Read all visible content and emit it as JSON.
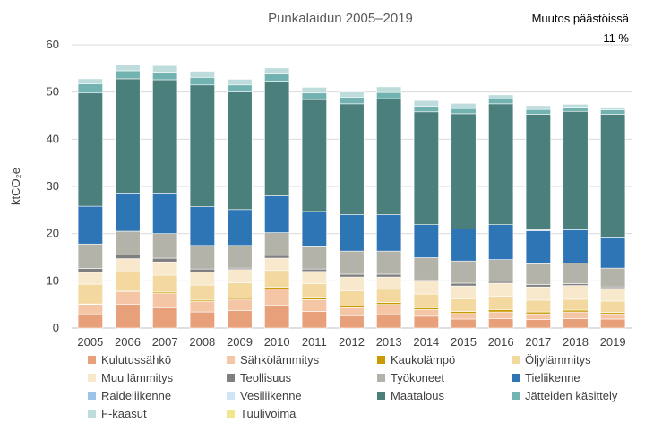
{
  "chart_data": {
    "type": "stacked-bar",
    "title": "Punkalaidun 2005–2019",
    "note_label": "Muutos päästöissä",
    "note_value": "-11 %",
    "ylabel": "ktCO₂e",
    "ylim": [
      0,
      60
    ],
    "yticks": [
      0,
      10,
      20,
      30,
      40,
      50,
      60
    ],
    "ytick_labels": [
      "0",
      "10",
      "20",
      "30",
      "40",
      "50",
      "60"
    ],
    "grid": true,
    "categories": [
      "2005",
      "2006",
      "2007",
      "2008",
      "2009",
      "2010",
      "2011",
      "2012",
      "2013",
      "2014",
      "2015",
      "2016",
      "2017",
      "2018",
      "2019"
    ],
    "series": [
      {
        "name": "Kulutussähkö",
        "color": "#E8A07A",
        "values": [
          3.0,
          5.0,
          4.3,
          3.4,
          3.7,
          4.8,
          3.5,
          2.6,
          3.0,
          2.5,
          1.9,
          2.0,
          1.8,
          2.0,
          1.9
        ]
      },
      {
        "name": "Sähkölämmitys",
        "color": "#F4C6A6",
        "values": [
          2.0,
          2.7,
          3.0,
          2.2,
          2.4,
          3.5,
          2.5,
          1.7,
          2.0,
          1.4,
          1.2,
          1.4,
          1.2,
          1.4,
          1.1
        ]
      },
      {
        "name": "Kaukolämpö",
        "color": "#C89B00",
        "values": [
          0.1,
          0.2,
          0.3,
          0.3,
          0.3,
          0.3,
          0.5,
          0.4,
          0.4,
          0.4,
          0.4,
          0.5,
          0.4,
          0.4,
          0.3
        ]
      },
      {
        "name": "Öljylämmitys",
        "color": "#F3D9A0",
        "values": [
          4.2,
          4.0,
          3.6,
          3.2,
          3.2,
          3.6,
          2.9,
          3.2,
          2.8,
          2.9,
          2.7,
          2.8,
          2.5,
          2.3,
          2.4
        ]
      },
      {
        "name": "Muu lämmitys",
        "color": "#F8E8CC",
        "values": [
          2.5,
          2.8,
          2.8,
          2.8,
          2.8,
          2.6,
          2.6,
          2.9,
          2.6,
          2.8,
          2.7,
          2.8,
          2.8,
          2.9,
          2.7
        ]
      },
      {
        "name": "Teollisuus",
        "color": "#7F7F7F",
        "values": [
          0.8,
          0.8,
          0.8,
          0.6,
          0.3,
          0.6,
          0.5,
          0.6,
          0.6,
          0.2,
          0.6,
          0.4,
          0.5,
          0.4,
          0.3
        ]
      },
      {
        "name": "Työkoneet",
        "color": "#B3B3AA",
        "values": [
          5.2,
          5.0,
          5.2,
          5.0,
          4.8,
          4.8,
          4.7,
          4.9,
          4.9,
          4.7,
          4.7,
          4.6,
          4.4,
          4.4,
          4.0
        ]
      },
      {
        "name": "Tieliikenne",
        "color": "#2E75B6",
        "values": [
          8.0,
          8.1,
          8.6,
          8.2,
          7.6,
          7.8,
          7.5,
          7.7,
          7.7,
          7.0,
          6.8,
          7.4,
          7.0,
          7.0,
          6.4
        ]
      },
      {
        "name": "Raideliikenne",
        "color": "#9DC3E6",
        "values": [
          0.0,
          0.0,
          0.0,
          0.0,
          0.0,
          0.0,
          0.0,
          0.0,
          0.0,
          0.0,
          0.0,
          0.0,
          0.2,
          0.0,
          0.0
        ]
      },
      {
        "name": "Vesiliikenne",
        "color": "#D0E6F5",
        "values": [
          0.0,
          0.0,
          0.0,
          0.0,
          0.0,
          0.0,
          0.0,
          0.0,
          0.0,
          0.0,
          0.0,
          0.0,
          0.0,
          0.0,
          0.0
        ]
      },
      {
        "name": "Maatalous",
        "color": "#4A7F7B",
        "values": [
          24.0,
          24.2,
          24.0,
          25.8,
          24.9,
          24.3,
          23.7,
          23.5,
          24.6,
          23.9,
          24.4,
          25.6,
          24.5,
          25.1,
          26.2
        ]
      },
      {
        "name": "Jätteiden käsittely",
        "color": "#72B2B0",
        "values": [
          1.9,
          1.7,
          1.6,
          1.6,
          1.5,
          1.5,
          1.4,
          1.4,
          1.3,
          1.2,
          1.1,
          1.0,
          1.0,
          0.9,
          0.9
        ]
      },
      {
        "name": "F-kaasut",
        "color": "#BFDCDC",
        "values": [
          1.1,
          1.3,
          1.4,
          1.3,
          1.2,
          1.3,
          1.2,
          1.1,
          1.2,
          1.2,
          1.1,
          0.9,
          0.8,
          0.6,
          0.6
        ]
      },
      {
        "name": "Tuulivoima",
        "color": "#F0E68C",
        "values": [
          0.0,
          0.0,
          0.0,
          0.0,
          0.0,
          0.0,
          0.0,
          0.0,
          0.0,
          0.0,
          0.0,
          0.0,
          0.0,
          0.0,
          0.0
        ]
      }
    ]
  }
}
